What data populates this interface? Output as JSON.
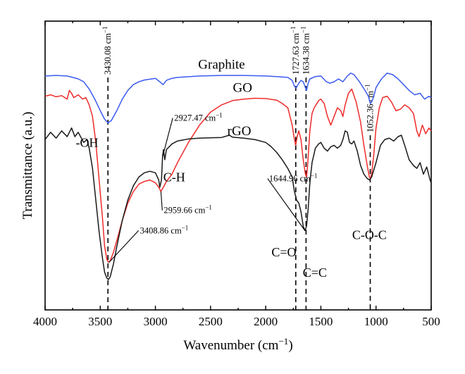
{
  "chart_data": {
    "type": "line",
    "xlabel": "Wavenumber (cm",
    "xlabel_sup": "−1",
    "xlabel_close": ")",
    "ylabel": "Transmittance (a.u.)",
    "xlim": [
      4000,
      500
    ],
    "ylim": [
      0,
      100
    ],
    "x_ticks": [
      4000,
      3500,
      3000,
      2500,
      2000,
      1500,
      1000,
      500
    ],
    "grid": false,
    "series": [
      {
        "name": "Graphite",
        "color": "#3b5bf0",
        "points": [
          [
            4000,
            81
          ],
          [
            3900,
            81.2
          ],
          [
            3800,
            81
          ],
          [
            3750,
            80.5
          ],
          [
            3700,
            80
          ],
          [
            3650,
            79
          ],
          [
            3600,
            76.5
          ],
          [
            3550,
            73
          ],
          [
            3500,
            69
          ],
          [
            3460,
            66
          ],
          [
            3430,
            64.8
          ],
          [
            3400,
            65.5
          ],
          [
            3350,
            69
          ],
          [
            3300,
            73
          ],
          [
            3250,
            76
          ],
          [
            3200,
            78
          ],
          [
            3150,
            79
          ],
          [
            3100,
            79.6
          ],
          [
            3000,
            80.2
          ],
          [
            2960,
            79
          ],
          [
            2930,
            78
          ],
          [
            2900,
            79.5
          ],
          [
            2850,
            80.2
          ],
          [
            2800,
            80.5
          ],
          [
            2600,
            81
          ],
          [
            2400,
            81.2
          ],
          [
            2200,
            81.2
          ],
          [
            2000,
            81
          ],
          [
            1900,
            80.8
          ],
          [
            1800,
            80.5
          ],
          [
            1760,
            79.5
          ],
          [
            1740,
            77.5
          ],
          [
            1725,
            76.8
          ],
          [
            1700,
            78.5
          ],
          [
            1680,
            79.5
          ],
          [
            1660,
            79
          ],
          [
            1640,
            77
          ],
          [
            1630,
            76
          ],
          [
            1615,
            78.5
          ],
          [
            1600,
            80
          ],
          [
            1550,
            80.8
          ],
          [
            1500,
            81
          ],
          [
            1450,
            79
          ],
          [
            1420,
            78.5
          ],
          [
            1380,
            79
          ],
          [
            1340,
            80
          ],
          [
            1300,
            79
          ],
          [
            1260,
            81
          ],
          [
            1230,
            82
          ],
          [
            1200,
            81.5
          ],
          [
            1150,
            79
          ],
          [
            1100,
            76
          ],
          [
            1070,
            74
          ],
          [
            1052,
            71.5
          ],
          [
            1040,
            72
          ],
          [
            1020,
            74
          ],
          [
            1000,
            77
          ],
          [
            950,
            80
          ],
          [
            900,
            82
          ],
          [
            850,
            81.5
          ],
          [
            800,
            80
          ],
          [
            750,
            78
          ],
          [
            700,
            76
          ],
          [
            650,
            74.5
          ],
          [
            600,
            75
          ],
          [
            560,
            73
          ],
          [
            520,
            74
          ],
          [
            500,
            73.5
          ]
        ]
      },
      {
        "name": "GO",
        "color": "#ef2b2b",
        "points": [
          [
            4000,
            74
          ],
          [
            3950,
            74.5
          ],
          [
            3900,
            73.8
          ],
          [
            3850,
            74.2
          ],
          [
            3800,
            73
          ],
          [
            3780,
            76
          ],
          [
            3760,
            75
          ],
          [
            3740,
            73.5
          ],
          [
            3700,
            74.5
          ],
          [
            3660,
            73
          ],
          [
            3630,
            73.5
          ],
          [
            3600,
            71
          ],
          [
            3570,
            67
          ],
          [
            3540,
            58
          ],
          [
            3510,
            45
          ],
          [
            3480,
            32
          ],
          [
            3460,
            22
          ],
          [
            3440,
            17.5
          ],
          [
            3425,
            16.5
          ],
          [
            3410,
            17
          ],
          [
            3380,
            20
          ],
          [
            3350,
            24
          ],
          [
            3300,
            31
          ],
          [
            3250,
            37
          ],
          [
            3200,
            41
          ],
          [
            3150,
            43.5
          ],
          [
            3100,
            44.5
          ],
          [
            3050,
            45
          ],
          [
            3000,
            44
          ],
          [
            2970,
            42.5
          ],
          [
            2950,
            41
          ],
          [
            2935,
            42
          ],
          [
            2920,
            43
          ],
          [
            2900,
            44.5
          ],
          [
            2850,
            47
          ],
          [
            2800,
            51
          ],
          [
            2700,
            58
          ],
          [
            2600,
            64
          ],
          [
            2500,
            68.5
          ],
          [
            2400,
            71
          ],
          [
            2300,
            72.5
          ],
          [
            2200,
            73
          ],
          [
            2100,
            73.3
          ],
          [
            2000,
            73.2
          ],
          [
            1900,
            72.6
          ],
          [
            1850,
            71.5
          ],
          [
            1800,
            70
          ],
          [
            1760,
            64
          ],
          [
            1740,
            59
          ],
          [
            1728,
            57
          ],
          [
            1715,
            60
          ],
          [
            1700,
            62
          ],
          [
            1680,
            59
          ],
          [
            1660,
            52
          ],
          [
            1640,
            47
          ],
          [
            1630,
            46
          ],
          [
            1620,
            50
          ],
          [
            1600,
            62
          ],
          [
            1580,
            68
          ],
          [
            1560,
            70
          ],
          [
            1520,
            72.5
          ],
          [
            1500,
            73
          ],
          [
            1470,
            71.5
          ],
          [
            1440,
            67
          ],
          [
            1410,
            64
          ],
          [
            1380,
            67
          ],
          [
            1350,
            70
          ],
          [
            1320,
            69
          ],
          [
            1300,
            67
          ],
          [
            1280,
            71
          ],
          [
            1250,
            75
          ],
          [
            1220,
            76.5
          ],
          [
            1180,
            72
          ],
          [
            1140,
            65
          ],
          [
            1110,
            57
          ],
          [
            1080,
            50
          ],
          [
            1060,
            46
          ],
          [
            1052,
            45.5
          ],
          [
            1040,
            47
          ],
          [
            1020,
            54
          ],
          [
            1000,
            63
          ],
          [
            970,
            70
          ],
          [
            940,
            73.5
          ],
          [
            900,
            74
          ],
          [
            860,
            72
          ],
          [
            820,
            69
          ],
          [
            780,
            69.5
          ],
          [
            740,
            71
          ],
          [
            700,
            70
          ],
          [
            660,
            68
          ],
          [
            630,
            62
          ],
          [
            610,
            60
          ],
          [
            580,
            64
          ],
          [
            550,
            61
          ],
          [
            520,
            63
          ],
          [
            500,
            62
          ]
        ]
      },
      {
        "name": "rGO",
        "color": "#1a1a1a",
        "points": [
          [
            4000,
            59
          ],
          [
            3950,
            61.5
          ],
          [
            3900,
            59.5
          ],
          [
            3850,
            62
          ],
          [
            3800,
            60
          ],
          [
            3760,
            63
          ],
          [
            3730,
            60
          ],
          [
            3700,
            61.5
          ],
          [
            3650,
            58
          ],
          [
            3620,
            59
          ],
          [
            3600,
            56
          ],
          [
            3570,
            49
          ],
          [
            3540,
            38
          ],
          [
            3510,
            27
          ],
          [
            3480,
            18
          ],
          [
            3460,
            13
          ],
          [
            3440,
            11
          ],
          [
            3425,
            10.5
          ],
          [
            3410,
            11.5
          ],
          [
            3380,
            16
          ],
          [
            3350,
            22
          ],
          [
            3300,
            31
          ],
          [
            3250,
            38
          ],
          [
            3200,
            43
          ],
          [
            3150,
            46
          ],
          [
            3100,
            47.5
          ],
          [
            3050,
            48
          ],
          [
            3000,
            47.5
          ],
          [
            2970,
            45
          ],
          [
            2960,
            42.5
          ],
          [
            2945,
            45
          ],
          [
            2935,
            53
          ],
          [
            2927,
            55.5
          ],
          [
            2915,
            52
          ],
          [
            2900,
            55.5
          ],
          [
            2850,
            57.5
          ],
          [
            2800,
            58.5
          ],
          [
            2700,
            59.2
          ],
          [
            2600,
            59.5
          ],
          [
            2500,
            59.6
          ],
          [
            2400,
            59.7
          ],
          [
            2330,
            60.5
          ],
          [
            2300,
            59.8
          ],
          [
            2200,
            59.5
          ],
          [
            2100,
            59
          ],
          [
            2000,
            58
          ],
          [
            1950,
            56.5
          ],
          [
            1900,
            54.5
          ],
          [
            1850,
            52
          ],
          [
            1800,
            49
          ],
          [
            1760,
            46
          ],
          [
            1740,
            41
          ],
          [
            1720,
            38
          ],
          [
            1700,
            37
          ],
          [
            1680,
            34
          ],
          [
            1660,
            29
          ],
          [
            1645,
            27.5
          ],
          [
            1630,
            29
          ],
          [
            1615,
            35
          ],
          [
            1600,
            44
          ],
          [
            1580,
            51
          ],
          [
            1550,
            56
          ],
          [
            1520,
            57.5
          ],
          [
            1500,
            58
          ],
          [
            1470,
            56
          ],
          [
            1440,
            55
          ],
          [
            1410,
            56.5
          ],
          [
            1380,
            57
          ],
          [
            1350,
            56
          ],
          [
            1320,
            57
          ],
          [
            1300,
            59
          ],
          [
            1280,
            62
          ],
          [
            1260,
            61.5
          ],
          [
            1240,
            58
          ],
          [
            1220,
            57.5
          ],
          [
            1200,
            58.5
          ],
          [
            1170,
            55
          ],
          [
            1140,
            50
          ],
          [
            1110,
            47
          ],
          [
            1080,
            45.5
          ],
          [
            1060,
            45
          ],
          [
            1040,
            46
          ],
          [
            1000,
            51
          ],
          [
            960,
            57
          ],
          [
            920,
            59
          ],
          [
            880,
            59.5
          ],
          [
            840,
            58.5
          ],
          [
            800,
            60
          ],
          [
            770,
            60.5
          ],
          [
            740,
            57
          ],
          [
            700,
            52
          ],
          [
            660,
            50
          ],
          [
            630,
            49
          ],
          [
            600,
            51
          ],
          [
            570,
            47
          ],
          [
            540,
            49.5
          ],
          [
            510,
            45
          ],
          [
            500,
            44
          ]
        ]
      }
    ],
    "series_labels": [
      {
        "text": "Graphite",
        "x": 2400,
        "y": 83.5
      },
      {
        "text": "GO",
        "x": 2210,
        "y": 75.5
      },
      {
        "text": "rGO",
        "x": 2240,
        "y": 60.5
      }
    ],
    "vertical_markers": [
      {
        "x": 3430.08,
        "label": "3430.08 cm",
        "top": 100,
        "bottom": 0
      },
      {
        "x": 1727.63,
        "label": "1727.63 cm",
        "top": 100,
        "bottom": 0
      },
      {
        "x": 1634.38,
        "label": "1634.38 cm",
        "top": 100,
        "bottom": 0
      },
      {
        "x": 1052.36,
        "label": "1052.36 cm",
        "top": 80,
        "bottom": 0
      }
    ],
    "unit_sup": "−1",
    "point_annotations": [
      {
        "text": "2927.47 cm",
        "x": 2830,
        "y": 65.5,
        "anchor_x": 2935,
        "anchor_y": 53
      },
      {
        "text": "2959.66 cm",
        "x": 2925,
        "y": 33.5,
        "anchor_x": 2950,
        "anchor_y": 41
      },
      {
        "text": "3408.86 cm",
        "x": 3140,
        "y": 26.5,
        "anchor_x": 3420,
        "anchor_y": 16.5
      },
      {
        "text": "1644.96 cm",
        "x": 1970,
        "y": 44.5,
        "anchor_x": 1645,
        "anchor_y": 27.5
      }
    ],
    "group_labels": [
      {
        "text": "-OH",
        "x": 3620,
        "y": 56.5
      },
      {
        "text": "C-H",
        "x": 2830,
        "y": 44.5
      },
      {
        "text": "C=O",
        "x": 1835,
        "y": 18.5
      },
      {
        "text": "C=C",
        "x": 1555,
        "y": 11.5
      },
      {
        "text": "C-O-C",
        "x": 1060,
        "y": 24.5
      }
    ]
  }
}
